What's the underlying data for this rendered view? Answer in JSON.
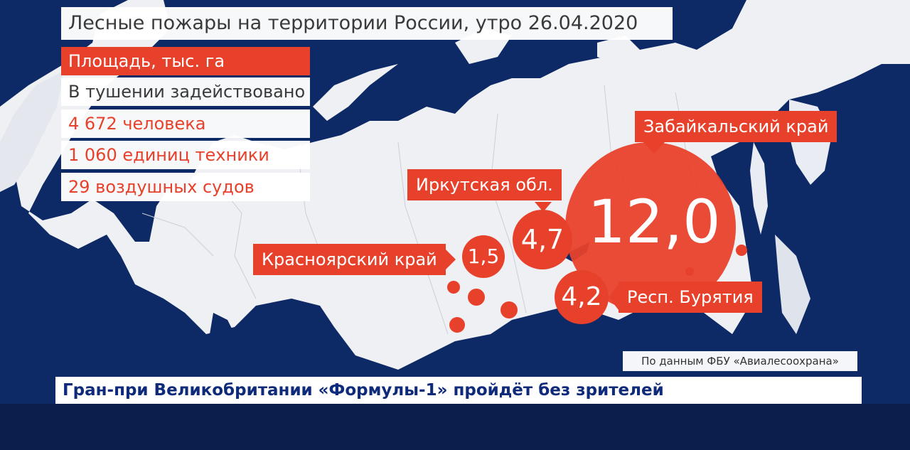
{
  "title": "Лесные пожары на территории России, утро 26.04.2020",
  "panel": {
    "header": "Площадь, тыс. га",
    "subtitle": "В тушении задействовано",
    "rows": [
      "4 672 человека",
      "1 060 единиц техники",
      "29 воздушных судов"
    ]
  },
  "regions": [
    {
      "name": "Забайкальский край",
      "value": "12,0"
    },
    {
      "name": "Иркутская обл.",
      "value": "4,7"
    },
    {
      "name": "Красноярский край",
      "value": "1,5"
    },
    {
      "name": "Респ. Бурятия",
      "value": "4,2"
    }
  ],
  "source": "По данным ФБУ «Авиалесоохрана»",
  "ticker": "Гран-при Великобритании «Формулы-1» пройдёт без зрителей",
  "colors": {
    "accent": "#e8412b",
    "water": "#0e2a66",
    "land": "#eef0f4",
    "ticker_text": "#0e2a7a"
  }
}
